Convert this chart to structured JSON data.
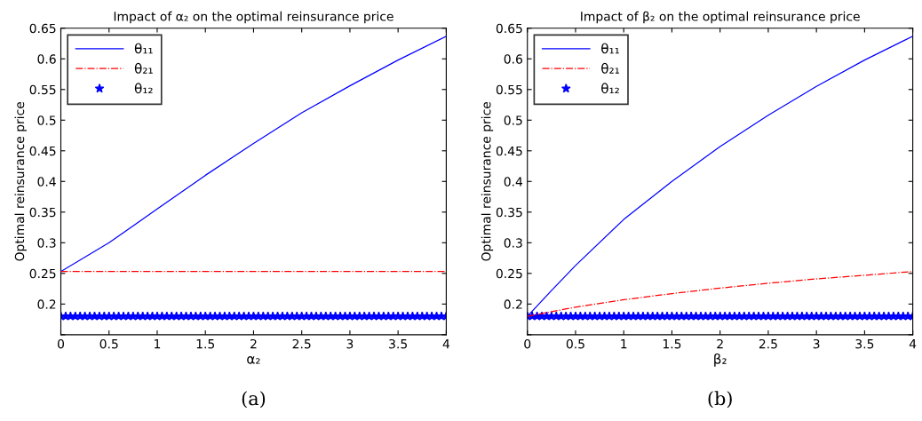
{
  "chart_data": [
    {
      "type": "line",
      "title": "Impact of α₂ on the optimal reinsurance price",
      "xlabel": "α₂",
      "ylabel": "Optimal reinsurance price",
      "xlim": [
        0,
        4
      ],
      "xticks": [
        0,
        0.5,
        1,
        1.5,
        2,
        2.5,
        3,
        3.5,
        4
      ],
      "ylim": [
        0.15,
        0.65
      ],
      "yticks": [
        {
          "value": 0.15,
          "label": null
        },
        0.2,
        0.25,
        0.3,
        0.35,
        0.4,
        0.45,
        0.5,
        0.55,
        0.6,
        0.65
      ],
      "grid": false,
      "legend": "top left",
      "annotations": [
        "(a)"
      ],
      "series": [
        {
          "name": "θ₁₁",
          "color": "#0000ff",
          "line_style": "solid",
          "x": [
            0,
            0.5,
            1,
            1.5,
            2,
            2.5,
            3,
            3.5,
            4
          ],
          "values": [
            0.253,
            0.3,
            0.355,
            0.41,
            0.462,
            0.512,
            0.556,
            0.598,
            0.637
          ]
        },
        {
          "name": "θ₂₁",
          "color": "#ff0000",
          "line_style": "dashdot",
          "x": [
            0,
            4
          ],
          "values": [
            0.253,
            0.253
          ]
        },
        {
          "name": "θ₁₂",
          "color": "#0000ff",
          "type": "scatter",
          "marker": "star",
          "x": [
            0,
            0.05,
            0.1,
            0.15,
            0.2,
            0.25,
            0.3,
            0.35,
            0.4,
            0.45,
            0.5,
            0.55,
            0.6,
            0.65,
            0.7,
            0.75,
            0.8,
            0.85,
            0.9,
            0.95,
            1,
            1.05,
            1.1,
            1.15,
            1.2,
            1.25,
            1.3,
            1.35,
            1.4,
            1.45,
            1.5,
            1.55,
            1.6,
            1.65,
            1.7,
            1.75,
            1.8,
            1.85,
            1.9,
            1.95,
            2,
            2.05,
            2.1,
            2.15,
            2.2,
            2.25,
            2.3,
            2.35,
            2.4,
            2.45,
            2.5,
            2.55,
            2.6,
            2.65,
            2.7,
            2.75,
            2.8,
            2.85,
            2.9,
            2.95,
            3,
            3.05,
            3.1,
            3.15,
            3.2,
            3.25,
            3.3,
            3.35,
            3.4,
            3.45,
            3.5,
            3.55,
            3.6,
            3.65,
            3.7,
            3.75,
            3.8,
            3.85,
            3.9,
            3.95,
            4
          ],
          "values": [
            0.18,
            0.18,
            0.18,
            0.18,
            0.18,
            0.18,
            0.18,
            0.18,
            0.18,
            0.18,
            0.18,
            0.18,
            0.18,
            0.18,
            0.18,
            0.18,
            0.18,
            0.18,
            0.18,
            0.18,
            0.18,
            0.18,
            0.18,
            0.18,
            0.18,
            0.18,
            0.18,
            0.18,
            0.18,
            0.18,
            0.18,
            0.18,
            0.18,
            0.18,
            0.18,
            0.18,
            0.18,
            0.18,
            0.18,
            0.18,
            0.18,
            0.18,
            0.18,
            0.18,
            0.18,
            0.18,
            0.18,
            0.18,
            0.18,
            0.18,
            0.18,
            0.18,
            0.18,
            0.18,
            0.18,
            0.18,
            0.18,
            0.18,
            0.18,
            0.18,
            0.18,
            0.18,
            0.18,
            0.18,
            0.18,
            0.18,
            0.18,
            0.18,
            0.18,
            0.18,
            0.18,
            0.18,
            0.18,
            0.18,
            0.18,
            0.18,
            0.18,
            0.18,
            0.18,
            0.18,
            0.18
          ]
        }
      ]
    },
    {
      "type": "line",
      "title": "Impact of β₂ on the optimal reinsurance price",
      "xlabel": "β₂",
      "ylabel": "Optimal reinsurance price",
      "xlim": [
        0,
        4
      ],
      "xticks": [
        0,
        0.5,
        1,
        1.5,
        2,
        2.5,
        3,
        3.5,
        4
      ],
      "ylim": [
        0.15,
        0.65
      ],
      "yticks": [
        {
          "value": 0.15,
          "label": null
        },
        0.2,
        0.25,
        0.3,
        0.35,
        0.4,
        0.45,
        0.5,
        0.55,
        0.6,
        0.65
      ],
      "grid": false,
      "legend": "top left",
      "annotations": [
        "(b)"
      ],
      "series": [
        {
          "name": "θ₁₁",
          "color": "#0000ff",
          "line_style": "solid",
          "x": [
            0,
            0.25,
            0.5,
            1,
            1.5,
            2,
            2.5,
            3,
            3.5,
            4
          ],
          "values": [
            0.18,
            0.222,
            0.263,
            0.338,
            0.4,
            0.457,
            0.508,
            0.555,
            0.598,
            0.637
          ]
        },
        {
          "name": "θ₂₁",
          "color": "#ff0000",
          "line_style": "dashdot",
          "x": [
            0,
            0.5,
            1,
            1.5,
            2,
            2.5,
            3,
            3.5,
            4
          ],
          "values": [
            0.18,
            0.195,
            0.207,
            0.217,
            0.226,
            0.234,
            0.241,
            0.247,
            0.253
          ]
        },
        {
          "name": "θ₁₂",
          "color": "#0000ff",
          "type": "scatter",
          "marker": "star",
          "x": [
            0,
            0.05,
            0.1,
            0.15,
            0.2,
            0.25,
            0.3,
            0.35,
            0.4,
            0.45,
            0.5,
            0.55,
            0.6,
            0.65,
            0.7,
            0.75,
            0.8,
            0.85,
            0.9,
            0.95,
            1,
            1.05,
            1.1,
            1.15,
            1.2,
            1.25,
            1.3,
            1.35,
            1.4,
            1.45,
            1.5,
            1.55,
            1.6,
            1.65,
            1.7,
            1.75,
            1.8,
            1.85,
            1.9,
            1.95,
            2,
            2.05,
            2.1,
            2.15,
            2.2,
            2.25,
            2.3,
            2.35,
            2.4,
            2.45,
            2.5,
            2.55,
            2.6,
            2.65,
            2.7,
            2.75,
            2.8,
            2.85,
            2.9,
            2.95,
            3,
            3.05,
            3.1,
            3.15,
            3.2,
            3.25,
            3.3,
            3.35,
            3.4,
            3.45,
            3.5,
            3.55,
            3.6,
            3.65,
            3.7,
            3.75,
            3.8,
            3.85,
            3.9,
            3.95,
            4
          ],
          "values": [
            0.18,
            0.18,
            0.18,
            0.18,
            0.18,
            0.18,
            0.18,
            0.18,
            0.18,
            0.18,
            0.18,
            0.18,
            0.18,
            0.18,
            0.18,
            0.18,
            0.18,
            0.18,
            0.18,
            0.18,
            0.18,
            0.18,
            0.18,
            0.18,
            0.18,
            0.18,
            0.18,
            0.18,
            0.18,
            0.18,
            0.18,
            0.18,
            0.18,
            0.18,
            0.18,
            0.18,
            0.18,
            0.18,
            0.18,
            0.18,
            0.18,
            0.18,
            0.18,
            0.18,
            0.18,
            0.18,
            0.18,
            0.18,
            0.18,
            0.18,
            0.18,
            0.18,
            0.18,
            0.18,
            0.18,
            0.18,
            0.18,
            0.18,
            0.18,
            0.18,
            0.18,
            0.18,
            0.18,
            0.18,
            0.18,
            0.18,
            0.18,
            0.18,
            0.18,
            0.18,
            0.18,
            0.18,
            0.18,
            0.18,
            0.18,
            0.18,
            0.18,
            0.18,
            0.18,
            0.18,
            0.18
          ]
        }
      ]
    }
  ]
}
